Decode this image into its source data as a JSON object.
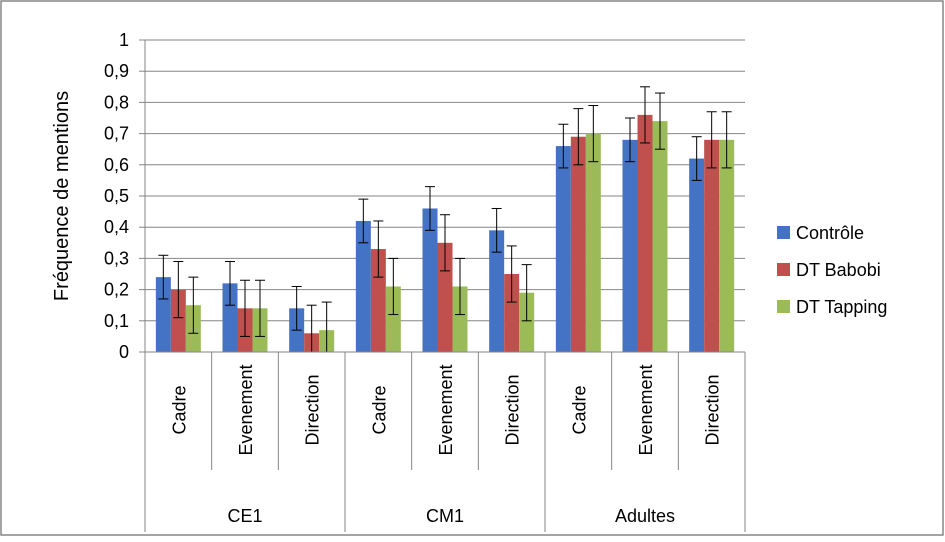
{
  "chart_data": {
    "type": "bar",
    "title": "",
    "xlabel": "",
    "ylabel": "Fréquence de mentions",
    "ylim": [
      0,
      1
    ],
    "yticks": [
      0,
      0.1,
      0.2,
      0.3,
      0.4,
      0.5,
      0.6,
      0.7,
      0.8,
      0.9,
      1
    ],
    "ytick_labels": [
      "0",
      "0,1",
      "0,2",
      "0,3",
      "0,4",
      "0,5",
      "0,6",
      "0,7",
      "0,8",
      "0,9",
      "1"
    ],
    "grid": "horizontal",
    "legend_position": "right",
    "groups": [
      {
        "label": "CE1",
        "categories": [
          "Cadre",
          "Evenement",
          "Direction"
        ]
      },
      {
        "label": "CM1",
        "categories": [
          "Cadre",
          "Evenement",
          "Direction"
        ]
      },
      {
        "label": "Adultes",
        "categories": [
          "Cadre",
          "Evenement",
          "Direction"
        ]
      }
    ],
    "categories": [
      "Cadre",
      "Evenement",
      "Direction",
      "Cadre",
      "Evenement",
      "Direction",
      "Cadre",
      "Evenement",
      "Direction"
    ],
    "series": [
      {
        "name": "Contrôle",
        "color": "#4472C4",
        "values": [
          0.24,
          0.22,
          0.14,
          0.42,
          0.46,
          0.39,
          0.66,
          0.68,
          0.62
        ],
        "errors": [
          0.07,
          0.07,
          0.07,
          0.07,
          0.07,
          0.07,
          0.07,
          0.07,
          0.07
        ]
      },
      {
        "name": "DT Babobi",
        "color": "#C0504D",
        "values": [
          0.2,
          0.14,
          0.06,
          0.33,
          0.35,
          0.25,
          0.69,
          0.76,
          0.68
        ],
        "errors": [
          0.09,
          0.09,
          0.09,
          0.09,
          0.09,
          0.09,
          0.09,
          0.09,
          0.09
        ]
      },
      {
        "name": "DT Tapping",
        "color": "#9BBB59",
        "values": [
          0.15,
          0.14,
          0.07,
          0.21,
          0.21,
          0.19,
          0.7,
          0.74,
          0.68
        ],
        "errors": [
          0.09,
          0.09,
          0.09,
          0.09,
          0.09,
          0.09,
          0.09,
          0.09,
          0.09
        ]
      }
    ]
  }
}
